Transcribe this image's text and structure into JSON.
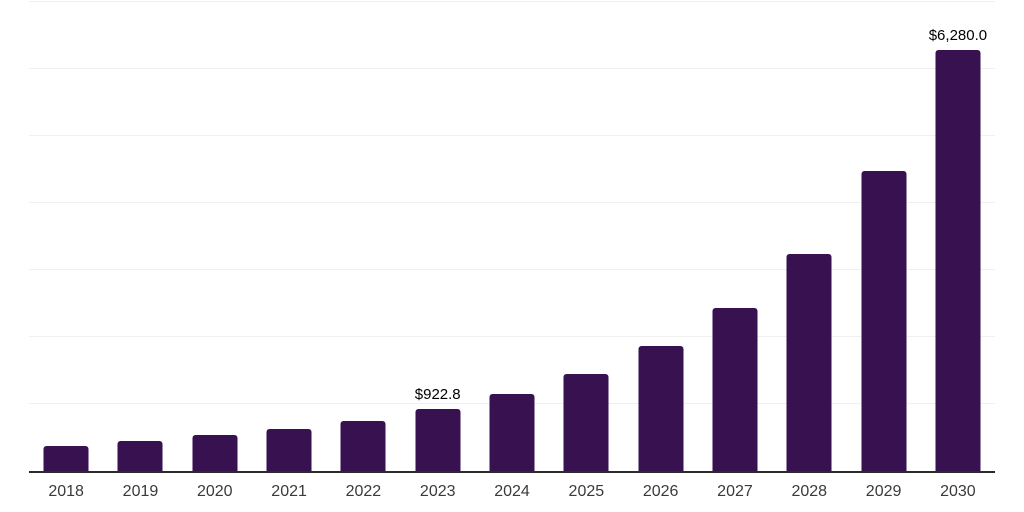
{
  "chart_data": {
    "type": "bar",
    "title": "",
    "xlabel": "",
    "ylabel": "",
    "categories": [
      "2018",
      "2019",
      "2020",
      "2021",
      "2022",
      "2023",
      "2024",
      "2025",
      "2026",
      "2027",
      "2028",
      "2029",
      "2030"
    ],
    "values": [
      370,
      445,
      535,
      625,
      745,
      922.8,
      1145,
      1450,
      1860,
      2440,
      3245,
      4480,
      6280.0
    ],
    "annotations": [
      {
        "index": 5,
        "text": "$922.8"
      },
      {
        "index": 12,
        "text": "$6,280.0"
      }
    ],
    "ylim": [
      0,
      7000
    ],
    "grid_step": 1000,
    "grid": true,
    "legend": false,
    "colors": {
      "bar": "#371150",
      "gridline": "#f0f0f0",
      "axis": "#2b2b2b",
      "data_label": "#000000",
      "tick_label": "#3a3a3a",
      "background": "#ffffff"
    }
  }
}
